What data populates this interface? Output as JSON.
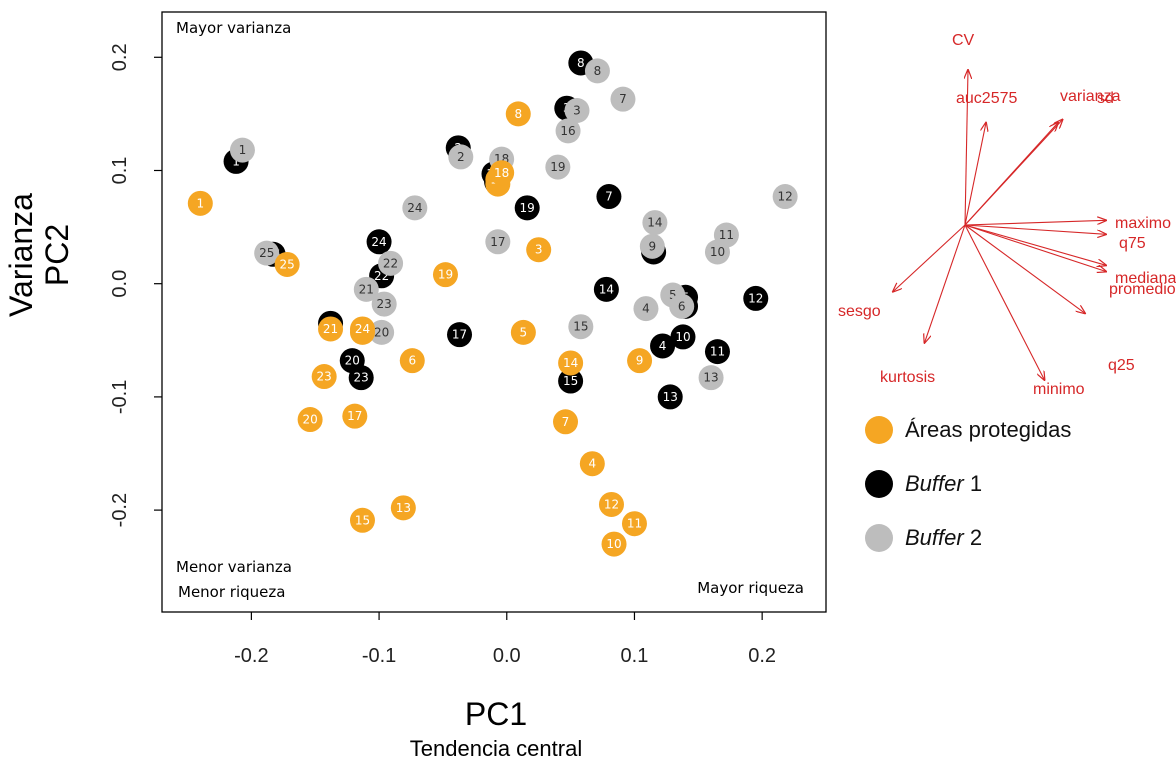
{
  "chart_data": {
    "type": "scatter",
    "xlabel": "PC1",
    "xlabel_sub": "Tendencia central",
    "ylabel": "PC2",
    "ylabel_sub": "Varianza",
    "xlim": [
      -0.27,
      0.25
    ],
    "ylim": [
      -0.29,
      0.24
    ],
    "x_ticks": [
      -0.2,
      -0.1,
      0.0,
      0.1,
      0.2
    ],
    "x_tick_labels": [
      "-0.2",
      "-0.1",
      "0.0",
      "0.1",
      "0.2"
    ],
    "y_ticks": [
      -0.2,
      -0.1,
      0.0,
      0.1,
      0.2
    ],
    "y_tick_labels": [
      "-0.2",
      "-0.1",
      "0.0",
      "0.1",
      "0.2"
    ],
    "grid": false,
    "annotations": {
      "top_left": "Mayor varianza",
      "bottom_left_1": "Menor varianza",
      "bottom_left_2": "Menor riqueza",
      "bottom_right": "Mayor riqueza"
    },
    "colors": {
      "areas": "#f5a623",
      "buffer1": "#000000",
      "buffer2": "#bdbdbd",
      "loadings": "#d62728"
    },
    "series": [
      {
        "name": "Áreas protegidas",
        "color": "#f5a623",
        "points": [
          {
            "label": "1",
            "x": -0.24,
            "y": 0.071
          },
          {
            "label": "2",
            "x": -0.007,
            "y": 0.088
          },
          {
            "label": "3",
            "x": 0.025,
            "y": 0.03
          },
          {
            "label": "4",
            "x": 0.067,
            "y": -0.159
          },
          {
            "label": "5",
            "x": 0.013,
            "y": -0.043
          },
          {
            "label": "6",
            "x": -0.074,
            "y": -0.068
          },
          {
            "label": "7",
            "x": 0.046,
            "y": -0.122
          },
          {
            "label": "8",
            "x": 0.009,
            "y": 0.15
          },
          {
            "label": "9",
            "x": 0.104,
            "y": -0.068
          },
          {
            "label": "10",
            "x": 0.084,
            "y": -0.23
          },
          {
            "label": "11",
            "x": 0.1,
            "y": -0.212
          },
          {
            "label": "12",
            "x": 0.082,
            "y": -0.195
          },
          {
            "label": "13",
            "x": -0.081,
            "y": -0.198
          },
          {
            "label": "14",
            "x": 0.05,
            "y": -0.07
          },
          {
            "label": "15",
            "x": -0.113,
            "y": -0.209
          },
          {
            "label": "16",
            "x": -0.007,
            "y": 0.092
          },
          {
            "label": "17",
            "x": -0.119,
            "y": -0.117
          },
          {
            "label": "18",
            "x": -0.004,
            "y": 0.098
          },
          {
            "label": "19",
            "x": -0.048,
            "y": 0.008
          },
          {
            "label": "20",
            "x": -0.154,
            "y": -0.12
          },
          {
            "label": "21",
            "x": -0.138,
            "y": -0.04
          },
          {
            "label": "22",
            "x": -0.113,
            "y": -0.043
          },
          {
            "label": "23",
            "x": -0.143,
            "y": -0.082
          },
          {
            "label": "24",
            "x": -0.113,
            "y": -0.04
          },
          {
            "label": "25",
            "x": -0.172,
            "y": 0.017
          }
        ]
      },
      {
        "name": "Buffer 1",
        "color": "#000000",
        "points": [
          {
            "label": "1",
            "x": -0.212,
            "y": 0.108
          },
          {
            "label": "2",
            "x": -0.038,
            "y": 0.12
          },
          {
            "label": "3",
            "x": 0.047,
            "y": 0.155
          },
          {
            "label": "4",
            "x": 0.122,
            "y": -0.055
          },
          {
            "label": "5",
            "x": 0.14,
            "y": -0.012
          },
          {
            "label": "6",
            "x": 0.14,
            "y": -0.02
          },
          {
            "label": "7",
            "x": 0.08,
            "y": 0.077
          },
          {
            "label": "8",
            "x": 0.058,
            "y": 0.195
          },
          {
            "label": "9",
            "x": 0.115,
            "y": 0.028
          },
          {
            "label": "10",
            "x": 0.138,
            "y": -0.047
          },
          {
            "label": "11",
            "x": 0.165,
            "y": -0.06
          },
          {
            "label": "12",
            "x": 0.195,
            "y": -0.013
          },
          {
            "label": "13",
            "x": 0.128,
            "y": -0.1
          },
          {
            "label": "14",
            "x": 0.078,
            "y": -0.005
          },
          {
            "label": "15",
            "x": 0.05,
            "y": -0.086
          },
          {
            "label": "16",
            "x": -0.008,
            "y": 0.09
          },
          {
            "label": "17",
            "x": -0.037,
            "y": -0.045
          },
          {
            "label": "18",
            "x": -0.01,
            "y": 0.097
          },
          {
            "label": "19",
            "x": 0.016,
            "y": 0.067
          },
          {
            "label": "20",
            "x": -0.121,
            "y": -0.068
          },
          {
            "label": "21",
            "x": -0.138,
            "y": -0.035
          },
          {
            "label": "22",
            "x": -0.098,
            "y": 0.007
          },
          {
            "label": "23",
            "x": -0.114,
            "y": -0.083
          },
          {
            "label": "24",
            "x": -0.1,
            "y": 0.037
          },
          {
            "label": "25",
            "x": -0.183,
            "y": 0.026
          }
        ]
      },
      {
        "name": "Buffer 2",
        "color": "#bdbdbd",
        "points": [
          {
            "label": "1",
            "x": -0.207,
            "y": 0.118
          },
          {
            "label": "2",
            "x": -0.036,
            "y": 0.112
          },
          {
            "label": "3",
            "x": 0.055,
            "y": 0.153
          },
          {
            "label": "4",
            "x": 0.109,
            "y": -0.022
          },
          {
            "label": "5",
            "x": 0.13,
            "y": -0.01
          },
          {
            "label": "6",
            "x": 0.137,
            "y": -0.02
          },
          {
            "label": "7",
            "x": 0.091,
            "y": 0.163
          },
          {
            "label": "8",
            "x": 0.071,
            "y": 0.188
          },
          {
            "label": "9",
            "x": 0.114,
            "y": 0.033
          },
          {
            "label": "10",
            "x": 0.165,
            "y": 0.028
          },
          {
            "label": "11",
            "x": 0.172,
            "y": 0.043
          },
          {
            "label": "12",
            "x": 0.218,
            "y": 0.077
          },
          {
            "label": "13",
            "x": 0.16,
            "y": -0.083
          },
          {
            "label": "14",
            "x": 0.116,
            "y": 0.054
          },
          {
            "label": "15",
            "x": 0.058,
            "y": -0.038
          },
          {
            "label": "16",
            "x": 0.048,
            "y": 0.135
          },
          {
            "label": "17",
            "x": -0.007,
            "y": 0.037
          },
          {
            "label": "18",
            "x": -0.004,
            "y": 0.11
          },
          {
            "label": "19",
            "x": 0.04,
            "y": 0.103
          },
          {
            "label": "20",
            "x": -0.098,
            "y": -0.043
          },
          {
            "label": "21",
            "x": -0.11,
            "y": -0.005
          },
          {
            "label": "22",
            "x": -0.091,
            "y": 0.018
          },
          {
            "label": "23",
            "x": -0.096,
            "y": -0.018
          },
          {
            "label": "24",
            "x": -0.072,
            "y": 0.067
          },
          {
            "label": "25",
            "x": -0.188,
            "y": 0.027
          }
        ]
      }
    ],
    "loadings": [
      {
        "name": "CV",
        "dx": 0.02,
        "dy": 1.0
      },
      {
        "name": "auc2575",
        "dx": 0.14,
        "dy": 0.66
      },
      {
        "name": "varianza",
        "dx": 0.62,
        "dy": 0.66
      },
      {
        "name": "sd",
        "dx": 0.65,
        "dy": 0.68
      },
      {
        "name": "maximo",
        "dx": 0.94,
        "dy": 0.03
      },
      {
        "name": "q75",
        "dx": 0.94,
        "dy": -0.06
      },
      {
        "name": "mediana",
        "dx": 0.94,
        "dy": -0.26
      },
      {
        "name": "promedio",
        "dx": 0.94,
        "dy": -0.3
      },
      {
        "name": "q25",
        "dx": 0.8,
        "dy": -0.57
      },
      {
        "name": "minimo",
        "dx": 0.53,
        "dy": -1.0
      },
      {
        "name": "kurtosis",
        "dx": -0.27,
        "dy": -0.76
      },
      {
        "name": "sesgo",
        "dx": -0.48,
        "dy": -0.43
      }
    ]
  },
  "legend": {
    "items": [
      {
        "prefix": "Áreas protegidas",
        "italic": "",
        "suffix": "",
        "color": "#f5a623"
      },
      {
        "prefix": "",
        "italic": "Buffer",
        "suffix": " 1",
        "color": "#000000"
      },
      {
        "prefix": "",
        "italic": "Buffer",
        "suffix": " 2",
        "color": "#bdbdbd"
      }
    ]
  }
}
